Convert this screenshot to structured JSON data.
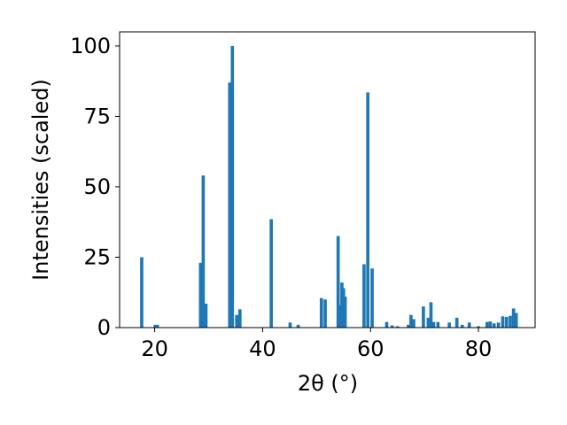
{
  "chart_data": {
    "type": "bar",
    "xlabel": "2θ (°)",
    "ylabel": "Intensities (scaled)",
    "xlim": [
      13.5,
      90.5
    ],
    "ylim": [
      0,
      105
    ],
    "xticks": [
      20,
      40,
      60,
      80
    ],
    "yticks": [
      0,
      25,
      50,
      75,
      100
    ],
    "bar_color": "#1f77b4",
    "bar_width": 0.6,
    "grid": false,
    "legend": "none",
    "series": [
      {
        "x": [
          17.6,
          20.1,
          20.5,
          28.5,
          29.0,
          29.5,
          33.9,
          34.4,
          35.2,
          35.8,
          41.6,
          45.1,
          46.6,
          50.9,
          51.6,
          54.0,
          54.4,
          54.7,
          55.0,
          55.3,
          58.8,
          59.5,
          60.3,
          63.0,
          64.0,
          65.0,
          67.0,
          67.5,
          68.0,
          69.8,
          70.7,
          71.2,
          71.7,
          72.5,
          74.6,
          76.0,
          77.0,
          78.3,
          80.0,
          81.6,
          82.2,
          82.9,
          83.7,
          84.5,
          85.2,
          85.9,
          86.5,
          87.0
        ],
        "values": [
          25.0,
          1.0,
          1.0,
          23.0,
          54.0,
          8.5,
          87.0,
          100.0,
          4.5,
          6.5,
          38.5,
          1.8,
          1.0,
          10.5,
          10.0,
          32.5,
          8.0,
          16.0,
          14.0,
          11.0,
          22.5,
          83.5,
          21.0,
          2.0,
          0.8,
          0.5,
          1.0,
          4.5,
          3.0,
          7.5,
          3.5,
          9.0,
          2.0,
          2.0,
          1.8,
          3.5,
          1.0,
          1.8,
          0.5,
          2.0,
          2.2,
          1.5,
          1.8,
          4.0,
          3.8,
          4.2,
          6.8,
          5.2
        ]
      }
    ]
  }
}
